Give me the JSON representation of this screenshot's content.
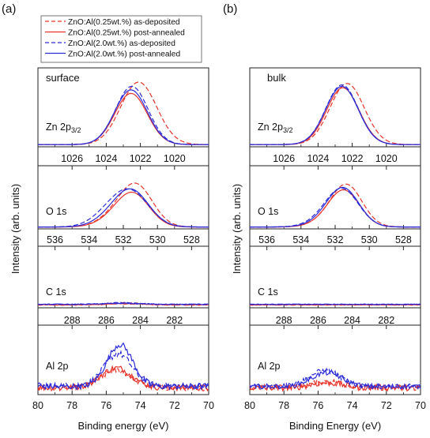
{
  "chart_data": [
    {
      "type": "line",
      "panel_label": "(a)",
      "title": "surface",
      "ylabel": "Intensity (arb. units)",
      "xlabel": "Binding energy (eV)",
      "legend": {
        "placement": "top",
        "entries": [
          {
            "name": "ZnO:Al(0.25wt.%) as-deposited",
            "color": "#e8332a",
            "dash": true
          },
          {
            "name": "ZnO:Al(0.25wt.%) post-annealed",
            "color": "#e8332a",
            "dash": false
          },
          {
            "name": "ZnO:Al(2.0wt.%) as-deposited",
            "color": "#2b2bd8",
            "dash": true
          },
          {
            "name": "ZnO:Al(2.0wt.%) post-annealed",
            "color": "#2b2bd8",
            "dash": false
          }
        ]
      },
      "subplots": [
        {
          "label": "Zn 2p",
          "label_sub": "3/2",
          "xlim": [
            1028,
            1018
          ],
          "xticks": [
            "1026",
            "1024",
            "1022",
            "1020"
          ],
          "xtick_values": [
            1026,
            1024,
            1022,
            1020
          ],
          "ylim": [
            0,
            1
          ],
          "series": [
            {
              "style": 0,
              "peaks": [
                {
                  "c": 1022.1,
                  "w": 1.05,
                  "h": 0.88
                }
              ],
              "base": 0.02
            },
            {
              "style": 1,
              "peaks": [
                {
                  "c": 1022.55,
                  "w": 0.95,
                  "h": 0.72
                }
              ],
              "base": 0.02
            },
            {
              "style": 2,
              "peaks": [
                {
                  "c": 1022.5,
                  "w": 0.95,
                  "h": 0.82
                }
              ],
              "base": 0.02
            },
            {
              "style": 3,
              "peaks": [
                {
                  "c": 1022.55,
                  "w": 0.95,
                  "h": 0.77
                }
              ],
              "base": 0.02
            }
          ]
        },
        {
          "label": "O 1s",
          "xlim": [
            537,
            527
          ],
          "xticks": [
            "536",
            "534",
            "532",
            "530",
            "528"
          ],
          "xtick_values": [
            536,
            534,
            532,
            530,
            528
          ],
          "ylim": [
            0,
            1
          ],
          "series": [
            {
              "style": 0,
              "peaks": [
                {
                  "c": 531.2,
                  "w": 0.95,
                  "h": 0.7
                },
                {
                  "c": 532.4,
                  "w": 1.0,
                  "h": 0.18
                }
              ],
              "base": 0.02
            },
            {
              "style": 1,
              "peaks": [
                {
                  "c": 531.4,
                  "w": 0.95,
                  "h": 0.56
                },
                {
                  "c": 532.5,
                  "w": 1.0,
                  "h": 0.12
                }
              ],
              "base": 0.02
            },
            {
              "style": 2,
              "peaks": [
                {
                  "c": 531.5,
                  "w": 1.05,
                  "h": 0.58
                },
                {
                  "c": 532.8,
                  "w": 1.0,
                  "h": 0.22
                }
              ],
              "base": 0.02
            },
            {
              "style": 3,
              "peaks": [
                {
                  "c": 531.45,
                  "w": 1.0,
                  "h": 0.6
                },
                {
                  "c": 532.6,
                  "w": 1.0,
                  "h": 0.16
                }
              ],
              "base": 0.02
            }
          ]
        },
        {
          "label": "C 1s",
          "xlim": [
            290,
            280
          ],
          "xticks": [
            "288",
            "286",
            "284",
            "282"
          ],
          "xtick_values": [
            288,
            286,
            284,
            282
          ],
          "ylim": [
            0,
            1
          ],
          "series": [
            {
              "style": 0,
              "peaks": [
                {
                  "c": 285.0,
                  "w": 1.0,
                  "h": 0.04
                }
              ],
              "base": 0.04,
              "noise": 0.008
            },
            {
              "style": 1,
              "peaks": [
                {
                  "c": 285.0,
                  "w": 1.0,
                  "h": 0.02
                }
              ],
              "base": 0.04,
              "noise": 0.008
            },
            {
              "style": 2,
              "peaks": [
                {
                  "c": 285.0,
                  "w": 1.0,
                  "h": 0.03
                }
              ],
              "base": 0.05,
              "noise": 0.008
            },
            {
              "style": 3,
              "peaks": [
                {
                  "c": 285.0,
                  "w": 1.0,
                  "h": 0.02
                }
              ],
              "base": 0.05,
              "noise": 0.008
            }
          ]
        },
        {
          "label": "Al 2p",
          "xlim": [
            80,
            70
          ],
          "xticks": [
            "80",
            "78",
            "76",
            "74",
            "72",
            "70"
          ],
          "xtick_values": [
            80,
            78,
            76,
            74,
            72,
            70
          ],
          "ylim": [
            0,
            1
          ],
          "series": [
            {
              "style": 0,
              "peaks": [
                {
                  "c": 75.4,
                  "w": 0.9,
                  "h": 0.28
                }
              ],
              "base": 0.1,
              "noise": 0.05
            },
            {
              "style": 1,
              "peaks": [
                {
                  "c": 75.4,
                  "w": 0.9,
                  "h": 0.32
                }
              ],
              "base": 0.1,
              "noise": 0.05
            },
            {
              "style": 2,
              "peaks": [
                {
                  "c": 75.3,
                  "w": 0.8,
                  "h": 0.52
                }
              ],
              "base": 0.13,
              "noise": 0.05
            },
            {
              "style": 3,
              "peaks": [
                {
                  "c": 75.2,
                  "w": 0.75,
                  "h": 0.68
                }
              ],
              "base": 0.12,
              "noise": 0.05
            }
          ]
        }
      ]
    },
    {
      "type": "line",
      "panel_label": "(b)",
      "title": "bulk",
      "ylabel": "Intensity (arb. units)",
      "xlabel": "Binding Energy (eV)",
      "subplots": [
        {
          "label": "Zn 2p",
          "label_sub": "3/2",
          "xlim": [
            1028,
            1018
          ],
          "xticks": [
            "1026",
            "1024",
            "1022",
            "1020"
          ],
          "xtick_values": [
            1026,
            1024,
            1022,
            1020
          ],
          "ylim": [
            0,
            1
          ],
          "series": [
            {
              "style": 0,
              "peaks": [
                {
                  "c": 1022.3,
                  "w": 1.0,
                  "h": 0.86
                }
              ],
              "base": 0.02
            },
            {
              "style": 1,
              "peaks": [
                {
                  "c": 1022.55,
                  "w": 0.95,
                  "h": 0.8
                }
              ],
              "base": 0.02
            },
            {
              "style": 2,
              "peaks": [
                {
                  "c": 1022.6,
                  "w": 0.95,
                  "h": 0.84
                }
              ],
              "base": 0.02
            },
            {
              "style": 3,
              "peaks": [
                {
                  "c": 1022.6,
                  "w": 0.95,
                  "h": 0.82
                }
              ],
              "base": 0.02
            }
          ]
        },
        {
          "label": "O 1s",
          "xlim": [
            537,
            527
          ],
          "xticks": [
            "536",
            "534",
            "532",
            "530",
            "528"
          ],
          "xtick_values": [
            536,
            534,
            532,
            530,
            528
          ],
          "ylim": [
            0,
            1
          ],
          "series": [
            {
              "style": 0,
              "peaks": [
                {
                  "c": 531.3,
                  "w": 0.9,
                  "h": 0.72
                },
                {
                  "c": 532.4,
                  "w": 1.0,
                  "h": 0.1
                }
              ],
              "base": 0.02
            },
            {
              "style": 1,
              "peaks": [
                {
                  "c": 531.45,
                  "w": 0.9,
                  "h": 0.62
                },
                {
                  "c": 532.4,
                  "w": 1.0,
                  "h": 0.08
                }
              ],
              "base": 0.02
            },
            {
              "style": 2,
              "peaks": [
                {
                  "c": 531.55,
                  "w": 0.95,
                  "h": 0.64
                },
                {
                  "c": 532.6,
                  "w": 1.0,
                  "h": 0.1
                }
              ],
              "base": 0.02
            },
            {
              "style": 3,
              "peaks": [
                {
                  "c": 531.5,
                  "w": 0.92,
                  "h": 0.66
                },
                {
                  "c": 532.5,
                  "w": 1.0,
                  "h": 0.09
                }
              ],
              "base": 0.02
            }
          ]
        },
        {
          "label": "C 1s",
          "xlim": [
            290,
            280
          ],
          "xticks": [
            "288",
            "286",
            "284",
            "282"
          ],
          "xtick_values": [
            288,
            286,
            284,
            282
          ],
          "ylim": [
            0,
            1
          ],
          "series": [
            {
              "style": 0,
              "peaks": [
                {
                  "c": 285.0,
                  "w": 1.0,
                  "h": 0.0
                }
              ],
              "base": 0.04,
              "noise": 0.006
            },
            {
              "style": 1,
              "peaks": [
                {
                  "c": 285.0,
                  "w": 1.0,
                  "h": 0.0
                }
              ],
              "base": 0.04,
              "noise": 0.006
            },
            {
              "style": 2,
              "peaks": [
                {
                  "c": 285.0,
                  "w": 1.0,
                  "h": 0.0
                }
              ],
              "base": 0.05,
              "noise": 0.006
            },
            {
              "style": 3,
              "peaks": [
                {
                  "c": 285.0,
                  "w": 1.0,
                  "h": 0.0
                }
              ],
              "base": 0.05,
              "noise": 0.006
            }
          ]
        },
        {
          "label": "Al 2p",
          "xlim": [
            80,
            70
          ],
          "xticks": [
            "80",
            "78",
            "76",
            "74",
            "72",
            "70"
          ],
          "xtick_values": [
            80,
            78,
            76,
            74,
            72,
            70
          ],
          "ylim": [
            0,
            1
          ],
          "series": [
            {
              "style": 0,
              "peaks": [
                {
                  "c": 75.5,
                  "w": 0.9,
                  "h": 0.1
                }
              ],
              "base": 0.1,
              "noise": 0.05
            },
            {
              "style": 1,
              "peaks": [
                {
                  "c": 75.5,
                  "w": 0.9,
                  "h": 0.08
                }
              ],
              "base": 0.1,
              "noise": 0.05
            },
            {
              "style": 2,
              "peaks": [
                {
                  "c": 75.6,
                  "w": 0.9,
                  "h": 0.26
                }
              ],
              "base": 0.12,
              "noise": 0.04
            },
            {
              "style": 3,
              "peaks": [
                {
                  "c": 75.5,
                  "w": 0.9,
                  "h": 0.22
                }
              ],
              "base": 0.12,
              "noise": 0.04
            }
          ]
        }
      ]
    }
  ]
}
